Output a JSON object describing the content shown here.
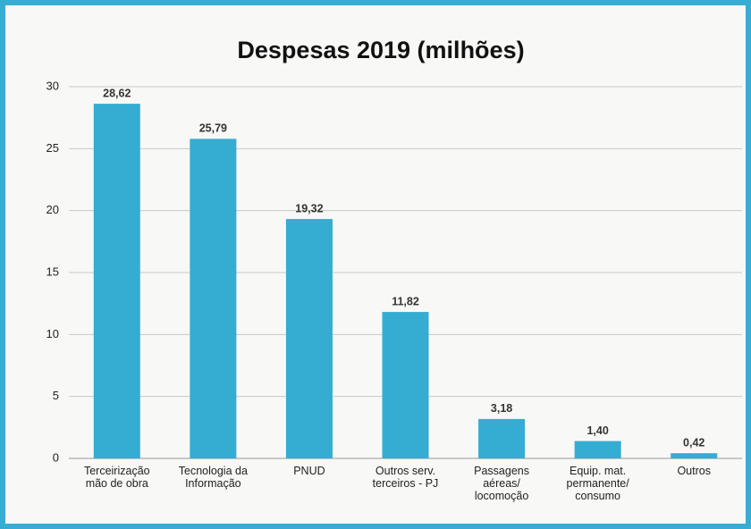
{
  "chart_data": {
    "type": "bar",
    "title": "Despesas 2019 (milhões)",
    "categories": [
      "Terceirização mão de obra",
      "Tecnologia da Informação",
      "PNUD",
      "Outros serv. terceiros - PJ",
      "Passagens aéreas/ locomoção",
      "Equip. mat. permanente/ consumo",
      "Outros"
    ],
    "values": [
      28.62,
      25.79,
      19.32,
      11.82,
      3.18,
      1.4,
      0.42
    ],
    "value_labels": [
      "28,62",
      "25,79",
      "19,32",
      "11,82",
      "3,18",
      "1,40",
      "0,42"
    ],
    "color": "#35acd2",
    "ylim": [
      0,
      30
    ],
    "yticks": [
      0,
      5,
      10,
      15,
      20,
      25,
      30
    ],
    "grid": true
  }
}
